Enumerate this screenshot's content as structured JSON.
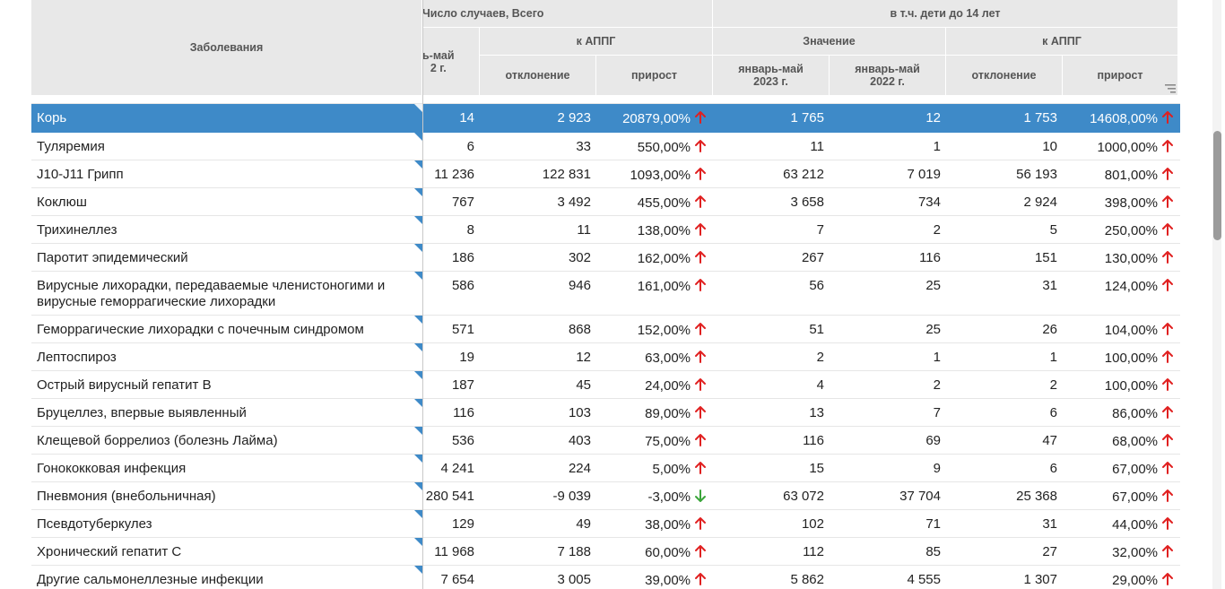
{
  "header": {
    "diseases": "Заболевания",
    "total_cases_group": "Число случаев, Всего",
    "children_group": "в т.ч. дети до 14 лет",
    "k_appg": "к АППГ",
    "value_group": "Значение",
    "partial_period": "ь-май\n2 г.",
    "deviation": "отклонение",
    "growth": "прирост",
    "jan_may_2023": "январь-май\n2023 г.",
    "jan_may_2022": "январь-май\n2022 г."
  },
  "colors": {
    "selected_row": "#3e8ac8",
    "up_arrow": "#e02020",
    "down_arrow": "#3aa53a"
  },
  "rows": [
    {
      "name": "Корь",
      "c1": "14",
      "c2": "2 923",
      "c3": "20879,00%",
      "c3dir": "up",
      "c4": "1 765",
      "c5": "12",
      "c6": "1 753",
      "c7": "14608,00%",
      "c7dir": "up",
      "selected": true
    },
    {
      "name": "Туляремия",
      "c1": "6",
      "c2": "33",
      "c3": "550,00%",
      "c3dir": "up",
      "c4": "11",
      "c5": "1",
      "c6": "10",
      "c7": "1000,00%",
      "c7dir": "up"
    },
    {
      "name": "J10-J11 Грипп",
      "c1": "11 236",
      "c2": "122 831",
      "c3": "1093,00%",
      "c3dir": "up",
      "c4": "63 212",
      "c5": "7 019",
      "c6": "56 193",
      "c7": "801,00%",
      "c7dir": "up"
    },
    {
      "name": "Коклюш",
      "c1": "767",
      "c2": "3 492",
      "c3": "455,00%",
      "c3dir": "up",
      "c4": "3 658",
      "c5": "734",
      "c6": "2 924",
      "c7": "398,00%",
      "c7dir": "up"
    },
    {
      "name": "Трихинеллез",
      "c1": "8",
      "c2": "11",
      "c3": "138,00%",
      "c3dir": "up",
      "c4": "7",
      "c5": "2",
      "c6": "5",
      "c7": "250,00%",
      "c7dir": "up"
    },
    {
      "name": "Паротит эпидемический",
      "c1": "186",
      "c2": "302",
      "c3": "162,00%",
      "c3dir": "up",
      "c4": "267",
      "c5": "116",
      "c6": "151",
      "c7": "130,00%",
      "c7dir": "up"
    },
    {
      "name": "Вирусные лихорадки, передаваемые членистоногими и вирусные геморрагические лихорадки",
      "c1": "586",
      "c2": "946",
      "c3": "161,00%",
      "c3dir": "up",
      "c4": "56",
      "c5": "25",
      "c6": "31",
      "c7": "124,00%",
      "c7dir": "up",
      "tall": true
    },
    {
      "name": "Геморрагические лихорадки с почечным синдромом",
      "c1": "571",
      "c2": "868",
      "c3": "152,00%",
      "c3dir": "up",
      "c4": "51",
      "c5": "25",
      "c6": "26",
      "c7": "104,00%",
      "c7dir": "up"
    },
    {
      "name": "Лептоспироз",
      "c1": "19",
      "c2": "12",
      "c3": "63,00%",
      "c3dir": "up",
      "c4": "2",
      "c5": "1",
      "c6": "1",
      "c7": "100,00%",
      "c7dir": "up"
    },
    {
      "name": "Острый вирусный гепатит B",
      "c1": "187",
      "c2": "45",
      "c3": "24,00%",
      "c3dir": "up",
      "c4": "4",
      "c5": "2",
      "c6": "2",
      "c7": "100,00%",
      "c7dir": "up"
    },
    {
      "name": "Бруцеллез, впервые выявленный",
      "c1": "116",
      "c2": "103",
      "c3": "89,00%",
      "c3dir": "up",
      "c4": "13",
      "c5": "7",
      "c6": "6",
      "c7": "86,00%",
      "c7dir": "up"
    },
    {
      "name": "Клещевой боррелиоз (болезнь Лайма)",
      "c1": "536",
      "c2": "403",
      "c3": "75,00%",
      "c3dir": "up",
      "c4": "116",
      "c5": "69",
      "c6": "47",
      "c7": "68,00%",
      "c7dir": "up"
    },
    {
      "name": "Гонококковая инфекция",
      "c1": "4 241",
      "c2": "224",
      "c3": "5,00%",
      "c3dir": "up",
      "c4": "15",
      "c5": "9",
      "c6": "6",
      "c7": "67,00%",
      "c7dir": "up"
    },
    {
      "name": "Пневмония (внебольничная)",
      "c1": "280 541",
      "c2": "-9 039",
      "c3": "-3,00%",
      "c3dir": "down",
      "c4": "63 072",
      "c5": "37 704",
      "c6": "25 368",
      "c7": "67,00%",
      "c7dir": "up"
    },
    {
      "name": "Псевдотуберкулез",
      "c1": "129",
      "c2": "49",
      "c3": "38,00%",
      "c3dir": "up",
      "c4": "102",
      "c5": "71",
      "c6": "31",
      "c7": "44,00%",
      "c7dir": "up"
    },
    {
      "name": "Хронический гепатит С",
      "c1": "11 968",
      "c2": "7 188",
      "c3": "60,00%",
      "c3dir": "up",
      "c4": "112",
      "c5": "85",
      "c6": "27",
      "c7": "32,00%",
      "c7dir": "up"
    },
    {
      "name": "Другие сальмонеллезные инфекции",
      "c1": "7 654",
      "c2": "3 005",
      "c3": "39,00%",
      "c3dir": "up",
      "c4": "5 862",
      "c5": "4 555",
      "c6": "1 307",
      "c7": "29,00%",
      "c7dir": "up"
    }
  ]
}
